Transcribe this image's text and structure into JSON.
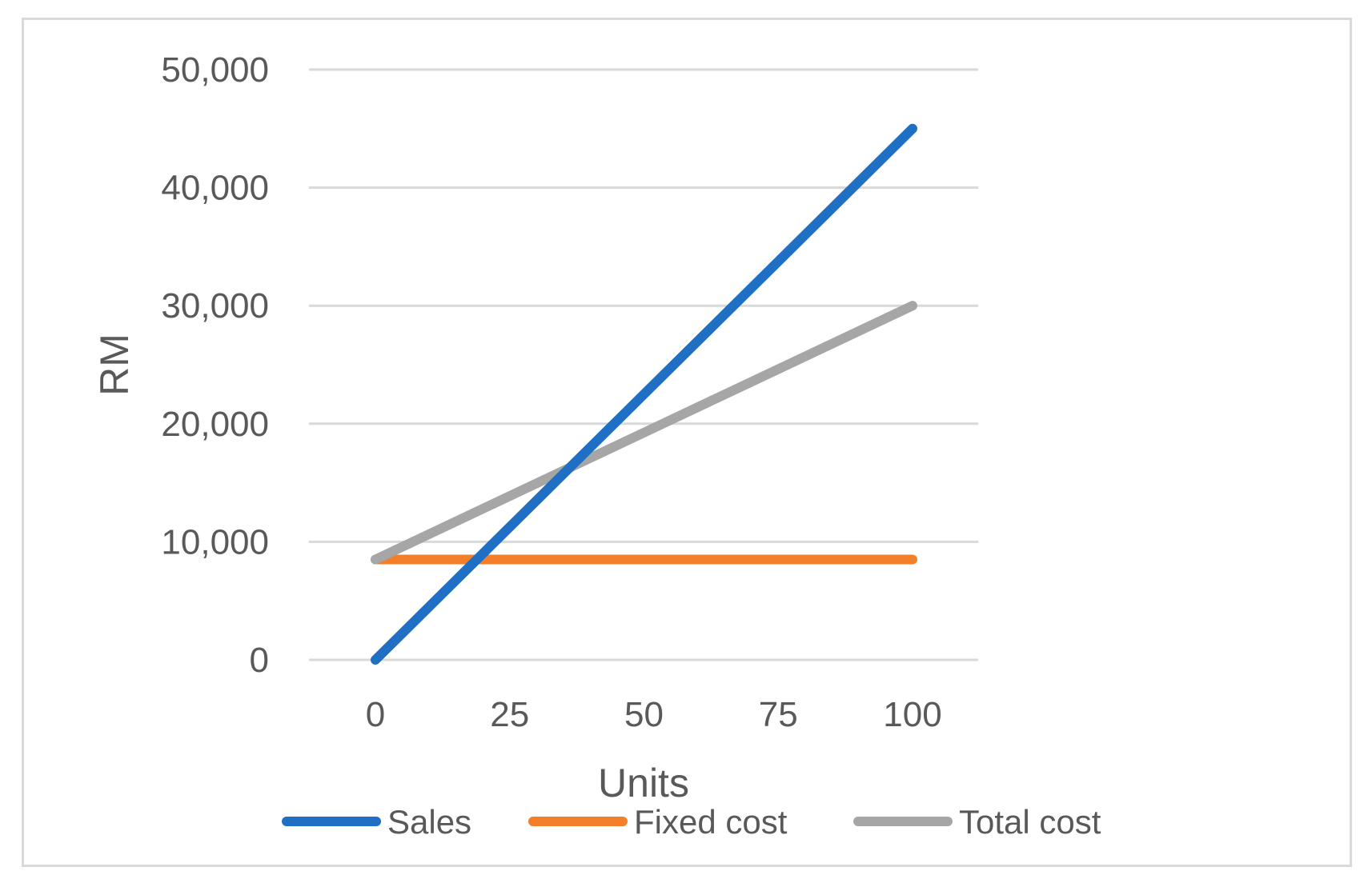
{
  "chart_data": {
    "type": "line",
    "title": "",
    "xlabel": "Units",
    "ylabel": "RM",
    "x": [
      0,
      25,
      50,
      75,
      100
    ],
    "x_ticks": [
      "0",
      "25",
      "50",
      "75",
      "100"
    ],
    "y_ticks": [
      "0",
      "10,000",
      "20,000",
      "30,000",
      "40,000",
      "50,000"
    ],
    "ylim": [
      0,
      50000
    ],
    "xlim": [
      0,
      100
    ],
    "grid": true,
    "legend_position": "bottom",
    "series": [
      {
        "name": "Sales",
        "color": "#1f6fc5",
        "values": [
          0,
          11250,
          22500,
          33750,
          45000
        ]
      },
      {
        "name": "Fixed cost",
        "color": "#f47f2a",
        "values": [
          8500,
          8500,
          8500,
          8500,
          8500
        ]
      },
      {
        "name": "Total cost",
        "color": "#a6a6a6",
        "values": [
          8500,
          13875,
          19250,
          24625,
          30000
        ]
      }
    ]
  }
}
